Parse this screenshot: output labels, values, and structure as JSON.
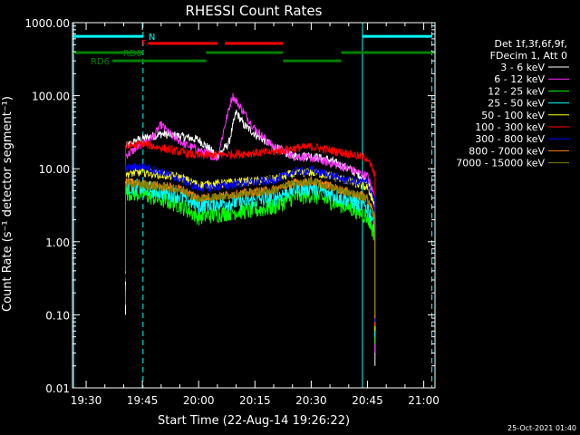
{
  "chart_data": {
    "type": "line",
    "title": "RHESSI Count Rates",
    "xlabel": "Start Time (22-Aug-14 19:26:22)",
    "ylabel": "Count Rate (s⁻¹ detector segment⁻¹)",
    "x_ticks": [
      "19:30",
      "19:45",
      "20:00",
      "20:15",
      "20:30",
      "20:45",
      "21:00"
    ],
    "y_ticks": [
      "0.01",
      "0.10",
      "1.00",
      "10.00",
      "100.00",
      "1000.00"
    ],
    "y_scale": "log",
    "ylim": [
      0.01,
      1000
    ],
    "xlim": [
      "19:26:22",
      "21:03:00"
    ],
    "grid": false,
    "legend_position": "top-right",
    "legend_header": [
      "Det 1f,3f,6f,9f,",
      "FDecim 1, Att 0"
    ],
    "footer_text": "25-Oct-2021 01:40",
    "data_window": {
      "start": "19:40:30",
      "end": "20:47:00"
    },
    "series": [
      {
        "name": "3 - 6 keV",
        "color": "#ffffff",
        "points": [
          [
            "19:40:30",
            20
          ],
          [
            "19:44",
            25
          ],
          [
            "19:50",
            30
          ],
          [
            "19:55",
            28
          ],
          [
            "20:00",
            25
          ],
          [
            "20:05",
            15
          ],
          [
            "20:08",
            22
          ],
          [
            "20:10",
            60
          ],
          [
            "20:12",
            40
          ],
          [
            "20:15",
            30
          ],
          [
            "20:20",
            20
          ],
          [
            "20:25",
            15
          ],
          [
            "20:30",
            15
          ],
          [
            "20:35",
            13
          ],
          [
            "20:40",
            10
          ],
          [
            "20:45",
            7
          ],
          [
            "20:47",
            3
          ]
        ]
      },
      {
        "name": "6 - 12 keV",
        "color": "#ff33ff",
        "points": [
          [
            "19:40:30",
            15
          ],
          [
            "19:44",
            20
          ],
          [
            "19:48",
            28
          ],
          [
            "19:50",
            40
          ],
          [
            "19:53",
            28
          ],
          [
            "19:56",
            22
          ],
          [
            "20:00",
            18
          ],
          [
            "20:05",
            14
          ],
          [
            "20:07",
            40
          ],
          [
            "20:09",
            100
          ],
          [
            "20:12",
            60
          ],
          [
            "20:15",
            35
          ],
          [
            "20:20",
            20
          ],
          [
            "20:25",
            15
          ],
          [
            "20:30",
            14
          ],
          [
            "20:35",
            12
          ],
          [
            "20:40",
            10
          ],
          [
            "20:45",
            8
          ],
          [
            "20:47",
            4
          ]
        ]
      },
      {
        "name": "12 - 25 keV",
        "color": "#00ff00",
        "points": [
          [
            "19:40:30",
            4.8
          ],
          [
            "19:45",
            4.5
          ],
          [
            "19:55",
            3.2
          ],
          [
            "20:00",
            2.2
          ],
          [
            "20:05",
            2.4
          ],
          [
            "20:10",
            2.6
          ],
          [
            "20:15",
            2.7
          ],
          [
            "20:20",
            3.0
          ],
          [
            "20:25",
            4.0
          ],
          [
            "20:30",
            4.4
          ],
          [
            "20:35",
            3.6
          ],
          [
            "20:40",
            3.0
          ],
          [
            "20:45",
            2.2
          ],
          [
            "20:47",
            1.2
          ]
        ]
      },
      {
        "name": "25 - 50 keV",
        "color": "#00ffff",
        "points": [
          [
            "19:40:30",
            5.8
          ],
          [
            "19:45",
            5.5
          ],
          [
            "19:55",
            4.3
          ],
          [
            "20:00",
            3.2
          ],
          [
            "20:05",
            3.4
          ],
          [
            "20:10",
            3.5
          ],
          [
            "20:15",
            3.7
          ],
          [
            "20:20",
            4.0
          ],
          [
            "20:25",
            5.2
          ],
          [
            "20:30",
            5.6
          ],
          [
            "20:35",
            4.6
          ],
          [
            "20:40",
            3.8
          ],
          [
            "20:45",
            3.0
          ],
          [
            "20:47",
            1.7
          ]
        ]
      },
      {
        "name": "50 - 100 keV",
        "color": "#ffff00",
        "points": [
          [
            "19:40:30",
            8.5
          ],
          [
            "19:45",
            9
          ],
          [
            "19:55",
            7.6
          ],
          [
            "20:00",
            6
          ],
          [
            "20:05",
            6.2
          ],
          [
            "20:10",
            6.6
          ],
          [
            "20:15",
            6.7
          ],
          [
            "20:20",
            7.2
          ],
          [
            "20:25",
            8.5
          ],
          [
            "20:30",
            9
          ],
          [
            "20:35",
            8
          ],
          [
            "20:40",
            6.8
          ],
          [
            "20:45",
            5.5
          ],
          [
            "20:47",
            3.2
          ]
        ]
      },
      {
        "name": "100 - 300 keV",
        "color": "#ff0000",
        "points": [
          [
            "19:40:30",
            20
          ],
          [
            "19:45",
            22
          ],
          [
            "19:55",
            17
          ],
          [
            "20:00",
            15
          ],
          [
            "20:05",
            15.5
          ],
          [
            "20:10",
            16
          ],
          [
            "20:15",
            16.5
          ],
          [
            "20:20",
            17
          ],
          [
            "20:25",
            19
          ],
          [
            "20:30",
            20
          ],
          [
            "20:35",
            18
          ],
          [
            "20:40",
            16
          ],
          [
            "20:45",
            14
          ],
          [
            "20:47",
            8
          ]
        ]
      },
      {
        "name": "300 - 800 keV",
        "color": "#0000ff",
        "points": [
          [
            "19:40:30",
            10
          ],
          [
            "19:45",
            11
          ],
          [
            "19:55",
            7.2
          ],
          [
            "20:00",
            5.4
          ],
          [
            "20:05",
            5.6
          ],
          [
            "20:10",
            6.2
          ],
          [
            "20:15",
            6.6
          ],
          [
            "20:20",
            7
          ],
          [
            "20:25",
            9
          ],
          [
            "20:30",
            9.5
          ],
          [
            "20:35",
            8.2
          ],
          [
            "20:40",
            6.8
          ],
          [
            "20:45",
            6.5
          ],
          [
            "20:47",
            3.7
          ]
        ]
      },
      {
        "name": "800 - 7000 keV",
        "color": "#ff8000",
        "points": [
          [
            "19:40:30",
            6.5
          ],
          [
            "19:45",
            6.2
          ],
          [
            "19:55",
            5.4
          ],
          [
            "20:00",
            4
          ],
          [
            "20:05",
            4.2
          ],
          [
            "20:10",
            4.5
          ],
          [
            "20:15",
            4.8
          ],
          [
            "20:20",
            5.2
          ],
          [
            "20:25",
            6.3
          ],
          [
            "20:30",
            6.8
          ],
          [
            "20:35",
            5.8
          ],
          [
            "20:40",
            4.8
          ],
          [
            "20:45",
            4
          ],
          [
            "20:47",
            2.2
          ]
        ]
      },
      {
        "name": "7000 - 15000 keV",
        "color": "#808000",
        "points": [
          [
            "19:40:30",
            6.2
          ],
          [
            "19:45",
            6
          ],
          [
            "19:55",
            5.2
          ],
          [
            "20:00",
            3.9
          ],
          [
            "20:05",
            4.1
          ],
          [
            "20:10",
            4.4
          ],
          [
            "20:15",
            4.7
          ],
          [
            "20:20",
            5.1
          ],
          [
            "20:25",
            6.2
          ],
          [
            "20:30",
            6.6
          ],
          [
            "20:35",
            5.6
          ],
          [
            "20:40",
            4.7
          ],
          [
            "20:45",
            3.9
          ],
          [
            "20:47",
            2.1
          ]
        ]
      }
    ],
    "vertical_lines": [
      {
        "time": "19:26:40",
        "color": "#00ffff",
        "style": "solid"
      },
      {
        "time": "19:45:10",
        "color": "#00ffff",
        "style": "dashed"
      },
      {
        "time": "20:43:40",
        "color": "#00ffff",
        "style": "solid"
      },
      {
        "time": "21:02:10",
        "color": "#00ffff",
        "style": "dashed"
      }
    ],
    "flag_bars": [
      {
        "label": "N",
        "color": "#00ffff",
        "level": 650,
        "segments": [
          [
            "19:26:22",
            "19:45:10"
          ],
          [
            "20:43:40",
            "21:02:10"
          ]
        ]
      },
      {
        "label": "F",
        "color": "#ff0000",
        "level": 520,
        "segments": [
          [
            "19:46:30",
            "20:05"
          ],
          [
            "20:07",
            "20:22:30"
          ]
        ]
      },
      {
        "label": "RD0",
        "color": "#008000",
        "level": 390,
        "segments": [
          [
            "19:26:22",
            "19:45:10"
          ],
          [
            "20:02",
            "20:22:30"
          ],
          [
            "20:38",
            "21:03"
          ]
        ]
      },
      {
        "label": "RD6",
        "color": "#008000",
        "level": 300,
        "segments": [
          [
            "19:37",
            "19:46"
          ],
          [
            "19:46",
            "20:02"
          ],
          [
            "20:22:30",
            "20:38"
          ]
        ]
      }
    ]
  }
}
